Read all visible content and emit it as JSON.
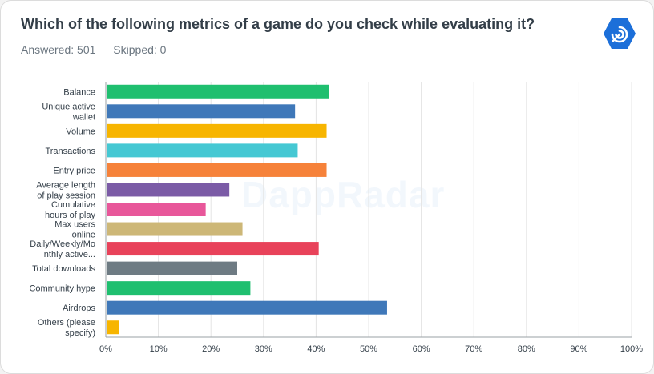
{
  "question": {
    "title": "Which of the following metrics of a game do you check while evaluating it?",
    "answered": "Answered: 501",
    "skipped": "Skipped: 0"
  },
  "watermark": "DappRadar",
  "logo_icon": "dappradar-logo-icon",
  "colors": {
    "grid": "#e4e4e4",
    "axis": "#9aa0a6",
    "logo": "#1c6fd9"
  },
  "chart_data": {
    "type": "bar",
    "orientation": "horizontal",
    "categories": [
      [
        "Balance"
      ],
      [
        "Unique active",
        "wallet"
      ],
      [
        "Volume"
      ],
      [
        "Transactions"
      ],
      [
        "Entry price"
      ],
      [
        "Average length",
        "of play session"
      ],
      [
        "Cumulative",
        "hours of play"
      ],
      [
        "Max users",
        "online"
      ],
      [
        "Daily/Weekly/Mo",
        "nthly active..."
      ],
      [
        "Total downloads"
      ],
      [
        "Community hype"
      ],
      [
        "Airdrops"
      ],
      [
        "Others (please",
        "specify)"
      ]
    ],
    "values": [
      42.5,
      36,
      42,
      36.5,
      42,
      23.5,
      19,
      26,
      40.5,
      25,
      27.5,
      53.5,
      2.5
    ],
    "colors": [
      "#1fbf6f",
      "#3f78b9",
      "#f7b500",
      "#45c8d3",
      "#f6823a",
      "#7b5ba6",
      "#e8579a",
      "#cdb777",
      "#e8425a",
      "#6e7b83",
      "#1fbf6f",
      "#3f78b9",
      "#f7b500"
    ],
    "xlim": [
      0,
      100
    ],
    "x_ticks": [
      "0%",
      "10%",
      "20%",
      "30%",
      "40%",
      "50%",
      "60%",
      "70%",
      "80%",
      "90%",
      "100%"
    ],
    "grid": true
  }
}
